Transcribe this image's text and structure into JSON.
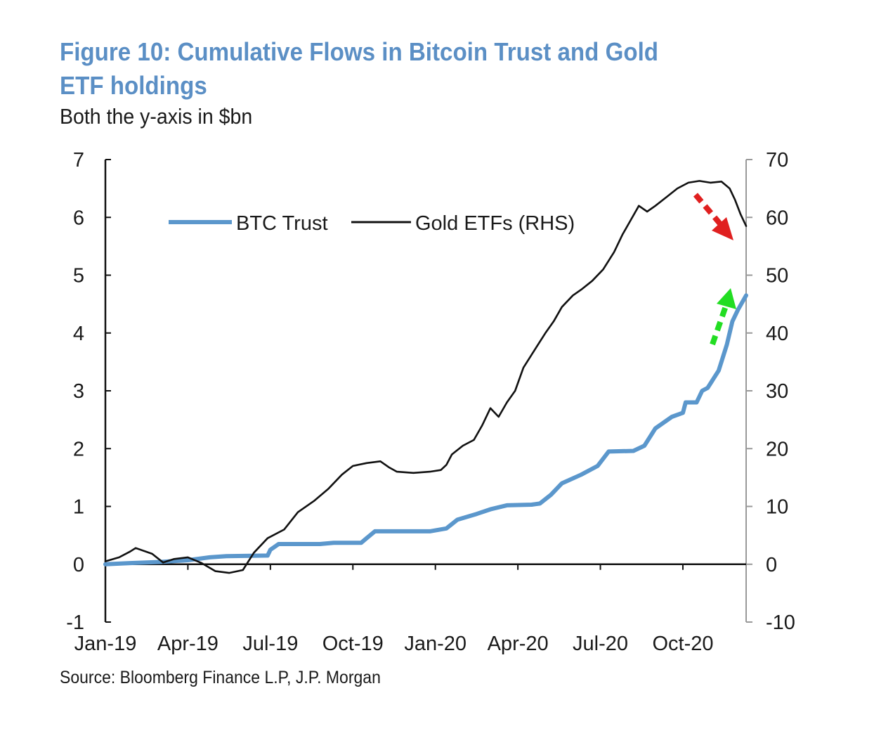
{
  "header": {
    "title": "Figure 10: Cumulative Flows in Bitcoin Trust and Gold ETF holdings",
    "subtitle": "Both the y-axis in $bn"
  },
  "footer": {
    "source": "Source: Bloomberg Finance L.P, J.P. Morgan"
  },
  "colors": {
    "btc": "#5b97cc",
    "gold": "#111111",
    "title": "#5b8fc5",
    "down_arrow": "#e02020",
    "up_arrow": "#22dd22"
  },
  "chart_data": {
    "type": "line",
    "title": "Figure 10: Cumulative Flows in Bitcoin Trust and Gold ETF holdings",
    "subtitle": "Both the y-axis in $bn",
    "x_tick_labels": [
      "Jan-19",
      "Apr-19",
      "Jul-19",
      "Oct-19",
      "Jan-20",
      "Apr-20",
      "Jul-20",
      "Oct-20"
    ],
    "x_range": [
      0,
      23.3
    ],
    "y_left": {
      "ticks": [
        7,
        6,
        5,
        4,
        3,
        2,
        1,
        0,
        -1
      ],
      "range": [
        -1,
        7
      ]
    },
    "y_right": {
      "ticks": [
        70,
        60,
        50,
        40,
        30,
        20,
        10,
        0,
        -10
      ],
      "range": [
        -10,
        70
      ]
    },
    "legend": [
      "BTC Trust",
      "Gold ETFs (RHS)"
    ],
    "legend_position": "top-left",
    "series": [
      {
        "name": "BTC Trust",
        "axis": "left",
        "points": [
          [
            0,
            0
          ],
          [
            0.9,
            0.02
          ],
          [
            2.0,
            0.04
          ],
          [
            3.0,
            0.07
          ],
          [
            3.8,
            0.12
          ],
          [
            4.4,
            0.14
          ],
          [
            5.9,
            0.15
          ],
          [
            6.0,
            0.25
          ],
          [
            6.3,
            0.35
          ],
          [
            7.8,
            0.35
          ],
          [
            8.3,
            0.37
          ],
          [
            9.3,
            0.37
          ],
          [
            9.5,
            0.45
          ],
          [
            9.8,
            0.57
          ],
          [
            11.8,
            0.57
          ],
          [
            12.4,
            0.62
          ],
          [
            12.8,
            0.77
          ],
          [
            13.5,
            0.87
          ],
          [
            14.0,
            0.95
          ],
          [
            14.6,
            1.02
          ],
          [
            15.5,
            1.03
          ],
          [
            15.8,
            1.05
          ],
          [
            16.2,
            1.2
          ],
          [
            16.6,
            1.4
          ],
          [
            17.3,
            1.55
          ],
          [
            17.9,
            1.7
          ],
          [
            18.3,
            1.95
          ],
          [
            19.2,
            1.96
          ],
          [
            19.6,
            2.05
          ],
          [
            20.0,
            2.35
          ],
          [
            20.6,
            2.55
          ],
          [
            21.0,
            2.62
          ],
          [
            21.1,
            2.8
          ],
          [
            21.5,
            2.8
          ],
          [
            21.7,
            3.0
          ],
          [
            21.9,
            3.05
          ],
          [
            22.3,
            3.35
          ],
          [
            22.6,
            3.8
          ],
          [
            22.8,
            4.2
          ],
          [
            23.0,
            4.4
          ],
          [
            23.3,
            4.65
          ]
        ]
      },
      {
        "name": "Gold ETFs (RHS)",
        "axis": "right",
        "points": [
          [
            0,
            0.5
          ],
          [
            0.5,
            1.2
          ],
          [
            0.9,
            2.2
          ],
          [
            1.1,
            2.8
          ],
          [
            1.7,
            1.8
          ],
          [
            2.1,
            0.3
          ],
          [
            2.5,
            0.9
          ],
          [
            3.0,
            1.2
          ],
          [
            3.5,
            0.2
          ],
          [
            4.0,
            -1.2
          ],
          [
            4.5,
            -1.5
          ],
          [
            5.0,
            -1.0
          ],
          [
            5.4,
            2.0
          ],
          [
            5.9,
            4.5
          ],
          [
            6.5,
            6.0
          ],
          [
            7.0,
            9.0
          ],
          [
            7.6,
            11.0
          ],
          [
            8.1,
            13.0
          ],
          [
            8.6,
            15.5
          ],
          [
            9.0,
            17.0
          ],
          [
            9.5,
            17.5
          ],
          [
            10.0,
            17.8
          ],
          [
            10.3,
            16.8
          ],
          [
            10.6,
            16.0
          ],
          [
            11.2,
            15.8
          ],
          [
            11.8,
            16.0
          ],
          [
            12.2,
            16.3
          ],
          [
            12.4,
            17.2
          ],
          [
            12.6,
            19.0
          ],
          [
            13.0,
            20.5
          ],
          [
            13.4,
            21.5
          ],
          [
            13.7,
            24.0
          ],
          [
            14.0,
            27.0
          ],
          [
            14.3,
            25.5
          ],
          [
            14.6,
            28.0
          ],
          [
            14.9,
            30.0
          ],
          [
            15.2,
            34.0
          ],
          [
            15.6,
            37.0
          ],
          [
            16.0,
            40.0
          ],
          [
            16.3,
            42.0
          ],
          [
            16.6,
            44.5
          ],
          [
            17.0,
            46.5
          ],
          [
            17.3,
            47.5
          ],
          [
            17.7,
            49.0
          ],
          [
            18.1,
            51.0
          ],
          [
            18.5,
            54.0
          ],
          [
            18.8,
            57.0
          ],
          [
            19.1,
            59.5
          ],
          [
            19.4,
            62.0
          ],
          [
            19.7,
            61.0
          ],
          [
            20.0,
            62.0
          ],
          [
            20.4,
            63.5
          ],
          [
            20.8,
            65.0
          ],
          [
            21.2,
            66.0
          ],
          [
            21.6,
            66.3
          ],
          [
            22.0,
            66.0
          ],
          [
            22.4,
            66.2
          ],
          [
            22.7,
            65.0
          ],
          [
            22.9,
            63.0
          ],
          [
            23.1,
            60.5
          ],
          [
            23.3,
            58.5
          ]
        ]
      }
    ]
  }
}
